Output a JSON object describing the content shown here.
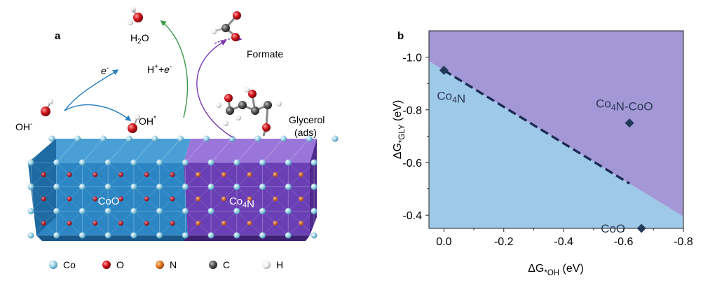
{
  "panel_a": {
    "label": "a",
    "molecules": {
      "water": "H2O",
      "formate": "Formate",
      "glycerol_line1": "Glycerol",
      "glycerol_line2": "(ads)"
    },
    "species": {
      "hydroxide": "OH-",
      "adsorbed_hydroxide": "OH*",
      "electron": "e-",
      "proton_electron": "H++e-"
    },
    "slabs": {
      "left": "CoO",
      "right": "Co4N"
    },
    "legend": [
      {
        "label": "Co",
        "color": "#6fb9d6"
      },
      {
        "label": "O",
        "color": "#c8141c"
      },
      {
        "label": "N",
        "color": "#e57a26"
      },
      {
        "label": "C",
        "color": "#555555"
      },
      {
        "label": "H",
        "color": "#f2f2f2"
      }
    ],
    "colors": {
      "coo_slab": "#2c86c4",
      "co4n_slab": "#6a3fb5",
      "arrow_blue": "#2a7fc0",
      "arrow_green": "#3a9a48",
      "arrow_purple": "#7a38b0"
    }
  },
  "panel_b": {
    "label": "b",
    "chart_data": {
      "type": "scatter",
      "xlabel": "ΔG*OH (eV)",
      "ylabel": "ΔG*GLY (eV)",
      "xlim": [
        0.05,
        -0.8
      ],
      "ylim": [
        -0.35,
        -1.1
      ],
      "xticks": [
        "0.0",
        "-0.2",
        "-0.4",
        "-0.6",
        "-0.8"
      ],
      "yticks": [
        "-1.0",
        "-0.8",
        "-0.6",
        "-0.4"
      ],
      "points": [
        {
          "label": "Co4N",
          "x": 0.0,
          "y": -0.95
        },
        {
          "label": "Co4N-CoO",
          "x": -0.62,
          "y": -0.75
        },
        {
          "label": "CoO",
          "x": -0.66,
          "y": -0.35
        }
      ],
      "boundary": [
        {
          "x": 0.0,
          "y": -0.95
        },
        {
          "x": -0.62,
          "y": -0.52
        }
      ],
      "region_top_color": "#a397d6",
      "region_bottom_color": "#9ec9e8",
      "marker_color": "#213a58",
      "boundary_color": "#1d2b55"
    }
  }
}
